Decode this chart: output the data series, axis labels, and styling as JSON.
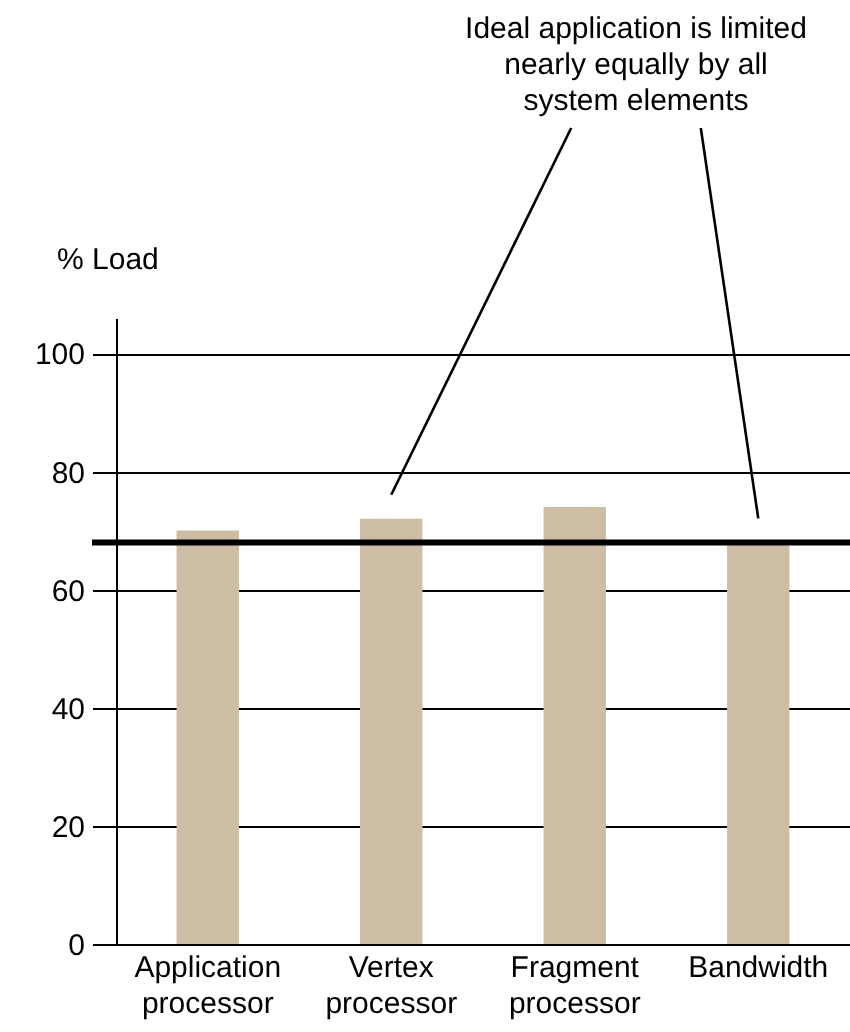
{
  "chart_data": {
    "type": "bar",
    "ylabel": "% Load",
    "categories": [
      "Application processor",
      "Vertex processor",
      "Fragment processor",
      "Bandwidth"
    ],
    "values": [
      70,
      72,
      74,
      68
    ],
    "color": "#cdbda4",
    "ylim": [
      0,
      106
    ],
    "yticks": [
      0,
      20,
      40,
      60,
      80,
      100
    ],
    "grid": "y",
    "ref_lines": [
      {
        "axis": "y",
        "value": 68,
        "color": "#000000"
      }
    ],
    "annotations": [
      "Ideal application is limited nearly equally by all system elements"
    ]
  }
}
